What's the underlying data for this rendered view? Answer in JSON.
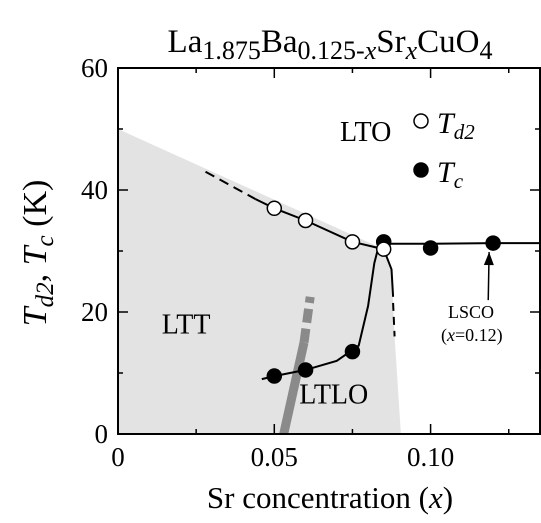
{
  "chart_data": {
    "type": "scatter",
    "title": {
      "p1": "La",
      "s1": "1.875",
      "p2": "Ba",
      "s2": "0.125-",
      "s2v": "x",
      "p3": "Sr",
      "s3v": "x",
      "p4": "CuO",
      "s4": "4"
    },
    "xlabel": {
      "text": "Sr concentration (",
      "var": "x",
      "close": ")"
    },
    "ylabel": {
      "v1": "T",
      "s1": "d2",
      "sep": ", ",
      "v2": "T",
      "s2": "c",
      "unit": " (K)"
    },
    "xlim": [
      0,
      0.135
    ],
    "ylim": [
      0,
      60
    ],
    "xticks": [
      {
        "value": 0,
        "label": "0"
      },
      {
        "value": 0.05,
        "label": "0.05"
      },
      {
        "value": 0.1,
        "label": "0.10"
      }
    ],
    "xminor": [
      0.025,
      0.075,
      0.125
    ],
    "yticks": [
      {
        "value": 0,
        "label": "0"
      },
      {
        "value": 20,
        "label": "20"
      },
      {
        "value": 40,
        "label": "40"
      },
      {
        "value": 60,
        "label": "60"
      }
    ],
    "yminor": [
      10,
      30,
      50
    ],
    "grid": false,
    "legend": {
      "placement": "top-right",
      "entries": [
        {
          "marker": "open",
          "v": "T",
          "sub": "d2"
        },
        {
          "marker": "filled",
          "v": "T",
          "sub": "c"
        }
      ]
    },
    "series": [
      {
        "name": "Td2",
        "marker": "open",
        "x": [
          0.05,
          0.06,
          0.075,
          0.085
        ],
        "y": [
          37,
          35,
          31.5,
          30.3
        ]
      },
      {
        "name": "Tc",
        "marker": "filled",
        "x": [
          0.05,
          0.06,
          0.075,
          0.085,
          0.1,
          0.12
        ],
        "y": [
          9.5,
          10.5,
          13.5,
          31.5,
          30.5,
          31.3
        ]
      }
    ],
    "lto_boundary": {
      "dashed": [
        [
          0.028,
          43
        ],
        [
          0.044,
          38.5
        ]
      ],
      "solid": [
        [
          0.044,
          38.5
        ],
        [
          0.05,
          37
        ],
        [
          0.06,
          35
        ],
        [
          0.075,
          31.5
        ],
        [
          0.085,
          30.3
        ]
      ]
    },
    "tc_curve": [
      [
        0.046,
        9
      ],
      [
        0.05,
        9.5
      ],
      [
        0.06,
        10.5
      ],
      [
        0.07,
        12
      ],
      [
        0.077,
        14.5
      ],
      [
        0.08,
        21
      ],
      [
        0.082,
        28
      ],
      [
        0.0835,
        31
      ],
      [
        0.086,
        31.2
      ],
      [
        0.1,
        31.2
      ],
      [
        0.12,
        31.3
      ],
      [
        0.135,
        31.3
      ]
    ],
    "ltlo_boundary": {
      "solid": [
        [
          0.085,
          30.3
        ],
        [
          0.0875,
          27
        ],
        [
          0.088,
          22.5
        ]
      ],
      "dashed": [
        [
          0.088,
          21.5
        ],
        [
          0.0885,
          16
        ]
      ]
    },
    "shaded_region": [
      [
        0,
        50
      ],
      [
        0.085,
        30.3
      ],
      [
        0.0875,
        27
      ],
      [
        0.0885,
        16
      ],
      [
        0.0905,
        0
      ],
      [
        0,
        0
      ]
    ],
    "gray_band": {
      "solid": [
        [
          0.053,
          0
        ],
        [
          0.0595,
          15
        ]
      ],
      "dashed": [
        [
          0.0595,
          15
        ],
        [
          0.0615,
          22.5
        ]
      ]
    },
    "region_labels": [
      {
        "text": "LTO",
        "x": 0.071,
        "y": 48
      },
      {
        "text": "LTT",
        "x": 0.014,
        "y": 16.5
      },
      {
        "text": "LTLO",
        "x": 0.058,
        "y": 5
      }
    ],
    "annotation": {
      "line1": "LSCO",
      "line2_open": "(",
      "line2_var": "x",
      "line2_rest": "=0.12)",
      "target": [
        0.12,
        31.3
      ],
      "text_x": 0.121,
      "text_y": 19
    }
  }
}
